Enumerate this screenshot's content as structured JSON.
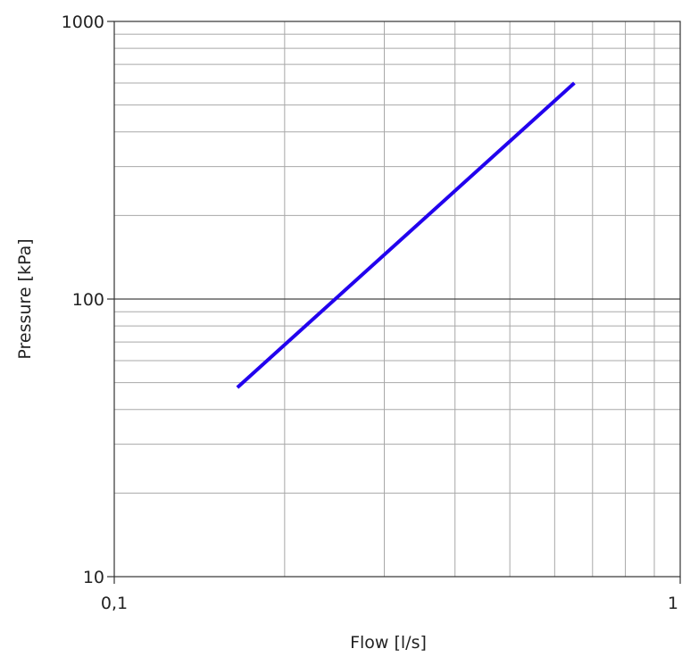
{
  "chart_data": {
    "type": "line",
    "x_scale": "log",
    "y_scale": "log",
    "xlabel": "Flow [l/s]",
    "ylabel": "Pressure [kPa]",
    "xlim": [
      0.1,
      1
    ],
    "ylim": [
      10,
      1000
    ],
    "x_ticks": [
      {
        "value": 0.1,
        "label": "0,1"
      },
      {
        "value": 1,
        "label": "1"
      }
    ],
    "y_ticks": [
      {
        "value": 10,
        "label": "10"
      },
      {
        "value": 100,
        "label": "100"
      },
      {
        "value": 1000,
        "label": "1000"
      }
    ],
    "grid": true,
    "series": [
      {
        "color": "#2200ee",
        "points": [
          {
            "x": 0.165,
            "y": 48
          },
          {
            "x": 0.65,
            "y": 600
          }
        ]
      }
    ]
  }
}
